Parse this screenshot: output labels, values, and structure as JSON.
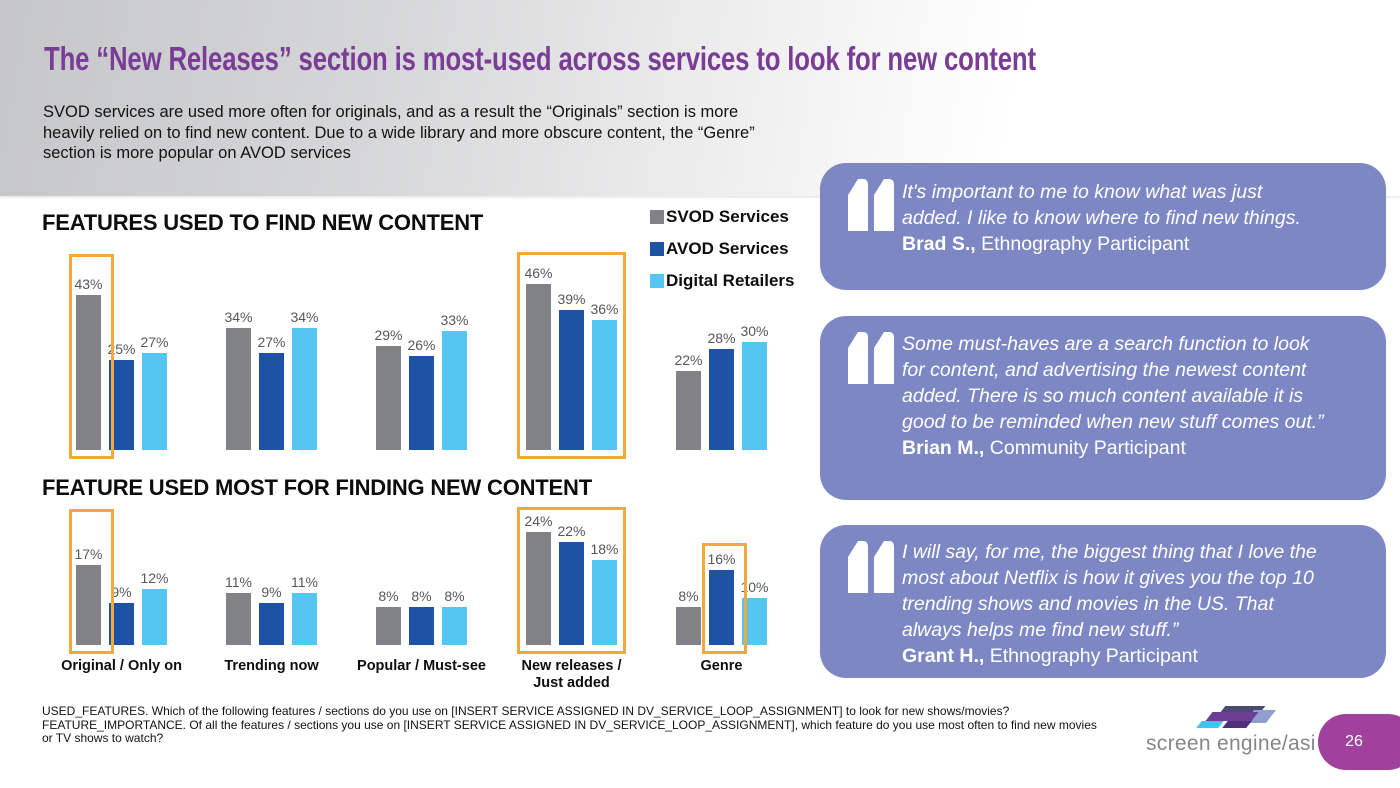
{
  "slide": {
    "title": "The “New Releases” section is most-used across services to look for new content",
    "subtitle_lines": [
      "SVOD services are used more often for originals, and as a result the “Originals” section is more",
      "heavily relied on to find new content. Due to a wide library and more obscure content, the “Genre”",
      "section is more popular on AVOD services"
    ],
    "page_number": "26",
    "logo_text": "screen engine/asi"
  },
  "colors": {
    "title_purple": "#7A3C96",
    "highlight_orange": "#F2A83D",
    "quote_box_purple": "#7D87C4",
    "page_badge_purple": "#A0419D"
  },
  "chart_data": [
    {
      "type": "bar",
      "title": "FEATURES USED TO FIND NEW CONTENT",
      "unit": "%",
      "legend_position": "top-right",
      "categories": [
        "Original / Only on",
        "Trending now",
        "Popular / Must-see",
        "New releases /\nJust added",
        "Genre"
      ],
      "series": [
        {
          "name": "SVOD Services",
          "color": "#808285",
          "values": [
            43,
            34,
            29,
            46,
            22
          ]
        },
        {
          "name": "AVOD Services",
          "color": "#1E52A4",
          "values": [
            25,
            27,
            26,
            39,
            28
          ]
        },
        {
          "name": "Digital Retailers",
          "color": "#55C5F2",
          "values": [
            27,
            34,
            33,
            36,
            30
          ]
        }
      ],
      "highlights": [
        {
          "type": "bar",
          "category": 0,
          "series": 0
        },
        {
          "type": "group",
          "category": 3
        }
      ]
    },
    {
      "type": "bar",
      "title": "FEATURE USED MOST FOR FINDING NEW CONTENT",
      "unit": "%",
      "categories": [
        "Original / Only on",
        "Trending now",
        "Popular / Must-see",
        "New releases /\nJust added",
        "Genre"
      ],
      "series": [
        {
          "name": "SVOD Services",
          "color": "#808285",
          "values": [
            17,
            11,
            8,
            24,
            8
          ]
        },
        {
          "name": "AVOD Services",
          "color": "#1E52A4",
          "values": [
            9,
            9,
            8,
            22,
            16
          ]
        },
        {
          "name": "Digital Retailers",
          "color": "#55C5F2",
          "values": [
            12,
            11,
            8,
            18,
            10
          ]
        }
      ],
      "highlights": [
        {
          "type": "bar",
          "category": 0,
          "series": 0
        },
        {
          "type": "group",
          "category": 3
        },
        {
          "type": "bar",
          "category": 4,
          "series": 1,
          "tight": true
        }
      ]
    }
  ],
  "quotes": [
    {
      "lines": [
        "It's important to me to know what was just",
        "added. I like to know where to find new things."
      ],
      "name": "Brad S.,",
      "role": " Ethnography Participant"
    },
    {
      "lines": [
        "Some must-haves are a search function to look",
        "for content, and advertising the newest content",
        "added. There is so much content available it is",
        "good to be reminded when new stuff comes out.”"
      ],
      "name": "Brian M.,",
      "role": " Community Participant"
    },
    {
      "lines": [
        "I will say, for me, the biggest thing that I love the",
        "most about Netflix is how it gives you the top 10",
        "trending shows and movies in the US. That",
        "always helps me find new stuff.”"
      ],
      "name": "Grant H.,",
      "role": " Ethnography Participant"
    }
  ],
  "footer_lines": [
    "USED_FEATURES. Which of the following features / sections do you use on [INSERT SERVICE ASSIGNED IN DV_SERVICE_LOOP_ASSIGNMENT] to look for new shows/movies?",
    "FEATURE_IMPORTANCE. Of all the features / sections you use on [INSERT SERVICE ASSIGNED IN DV_SERVICE_LOOP_ASSIGNMENT], which feature do you use most often to find new movies",
    "or TV shows to watch?"
  ]
}
